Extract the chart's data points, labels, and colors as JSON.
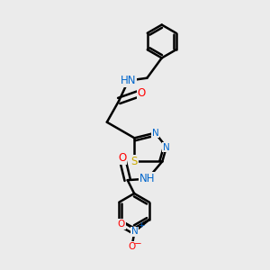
{
  "background_color": "#ebebeb",
  "bond_color": "#000000",
  "bond_width": 1.8,
  "atom_colors": {
    "N": "#0066cc",
    "O": "#ff0000",
    "S": "#ccaa00",
    "H": "#000000"
  },
  "font_size": 8.5,
  "fig_width": 3.0,
  "fig_height": 3.0,
  "dpi": 100
}
